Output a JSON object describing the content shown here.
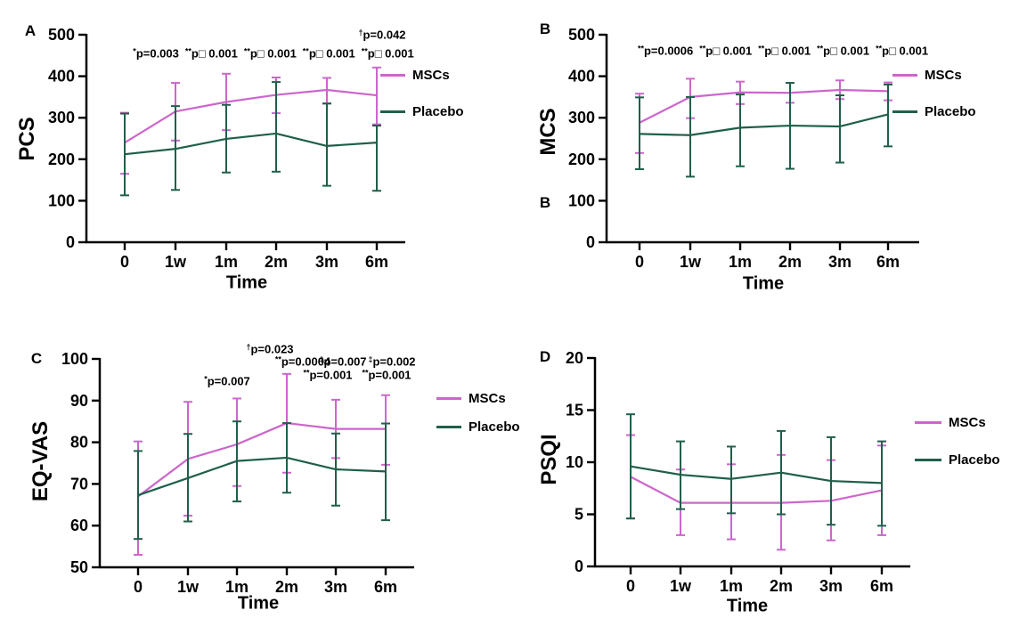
{
  "series_legend": {
    "mscs": "MSCs",
    "placebo": "Placebo"
  },
  "colors": {
    "mscs": "#CC66CC",
    "placebo": "#1F5F4B",
    "axis": "#000000"
  },
  "chart_data": [
    {
      "type": "line",
      "panel_label": "A",
      "ylabel": "PCS",
      "xlabel": "Time",
      "ylim": [
        0,
        500
      ],
      "yticks": [
        0,
        100,
        200,
        300,
        400,
        500
      ],
      "categories": [
        "0",
        "1w",
        "1m",
        "2m",
        "3m",
        "6m"
      ],
      "legend_position": "right",
      "grid": false,
      "series": [
        {
          "name": "MSCs",
          "color": "#CC66CC",
          "values": [
            240,
            315,
            338,
            355,
            367,
            354
          ],
          "err_low": [
            165,
            245,
            270,
            311,
            335,
            284
          ],
          "err_high": [
            312,
            384,
            406,
            397,
            396,
            421
          ]
        },
        {
          "name": "Placebo",
          "color": "#1F5F4B",
          "values": [
            212,
            225,
            249,
            262,
            232,
            240
          ],
          "err_low": [
            113,
            126,
            168,
            170,
            136,
            124
          ],
          "err_high": [
            310,
            328,
            331,
            386,
            334,
            281
          ]
        }
      ],
      "annotations": [
        {
          "x": 429,
          "y": 39,
          "parts": [
            {
              "marker": "†",
              "text": "p=0.042"
            }
          ]
        },
        {
          "x": 307,
          "y": 60,
          "parts": [
            {
              "marker": "*",
              "text": "p=0.003"
            },
            {
              "marker": "**",
              "text": "p□ 0.001"
            },
            {
              "marker": "**",
              "text": "p□ 0.001"
            },
            {
              "marker": "**",
              "text": "p□ 0.001"
            },
            {
              "marker": "**",
              "text": "p□ 0.001"
            }
          ]
        }
      ]
    },
    {
      "type": "line",
      "panel_label": "B",
      "extra_label": "B",
      "ylabel": "MCS",
      "xlabel": "Time",
      "ylim": [
        0,
        500
      ],
      "yticks": [
        0,
        100,
        200,
        300,
        400,
        500
      ],
      "categories": [
        "0",
        "1w",
        "1m",
        "2m",
        "3m",
        "6m"
      ],
      "legend_position": "right",
      "grid": false,
      "series": [
        {
          "name": "MSCs",
          "color": "#CC66CC",
          "values": [
            288,
            350,
            361,
            360,
            367,
            364
          ],
          "err_low": [
            215,
            299,
            333,
            336,
            345,
            342
          ],
          "err_high": [
            358,
            394,
            387,
            384,
            390,
            385
          ]
        },
        {
          "name": "Placebo",
          "color": "#1F5F4B",
          "values": [
            261,
            258,
            276,
            281,
            279,
            308
          ],
          "err_low": [
            176,
            158,
            183,
            177,
            192,
            231
          ],
          "err_high": [
            349,
            350,
            356,
            384,
            354,
            380
          ]
        }
      ],
      "annotations": [
        {
          "x": 298,
          "y": 57,
          "parts": [
            {
              "marker": "**",
              "text": "p=0.0006"
            },
            {
              "marker": "**",
              "text": "p□ 0.001"
            },
            {
              "marker": "**",
              "text": "p□ 0.001"
            },
            {
              "marker": "**",
              "text": "p□ 0.001"
            },
            {
              "marker": "**",
              "text": "p□ 0.001"
            }
          ]
        }
      ]
    },
    {
      "type": "line",
      "panel_label": "C",
      "ylabel": "EQ-VAS",
      "xlabel": "Time",
      "ylim": [
        50,
        100
      ],
      "yticks": [
        50,
        60,
        70,
        80,
        90,
        100
      ],
      "categories": [
        "0",
        "1w",
        "1m",
        "2m",
        "3m",
        "6m"
      ],
      "legend_position": "right",
      "grid": false,
      "series": [
        {
          "name": "MSCs",
          "color": "#CC66CC",
          "values": [
            67,
            76,
            79.5,
            84.6,
            83.2,
            83.2
          ],
          "err_low": [
            53,
            62.4,
            69.5,
            72.7,
            76.2,
            74.6
          ],
          "err_high": [
            80.2,
            89.7,
            90.5,
            96.4,
            90.2,
            91.3
          ]
        },
        {
          "name": "Placebo",
          "color": "#1F5F4B",
          "values": [
            67.3,
            71.4,
            75.5,
            76.3,
            73.5,
            73
          ],
          "err_low": [
            56.8,
            61,
            65.8,
            67.9,
            64.8,
            61.3
          ],
          "err_high": [
            77.9,
            82,
            85,
            84.6,
            82.1,
            84.5
          ]
        }
      ],
      "annotations": [
        {
          "x": 255,
          "y": 67,
          "parts": [
            {
              "marker": "*",
              "text": "p=0.007"
            }
          ]
        },
        {
          "x": 303,
          "y": 31,
          "parts": [
            {
              "marker": "†",
              "text": "p=0.023"
            }
          ]
        },
        {
          "x": 340,
          "y": 45,
          "parts": [
            {
              "marker": "**",
              "text": "p=0.0004"
            }
          ]
        },
        {
          "x": 385,
          "y": 45,
          "parts": [
            {
              "marker": "‡",
              "text": "p=0.007"
            }
          ]
        },
        {
          "x": 440,
          "y": 45,
          "parts": [
            {
              "marker": "‡",
              "text": "p=0.002"
            }
          ]
        },
        {
          "x": 368,
          "y": 60,
          "parts": [
            {
              "marker": "**",
              "text": "p=0.001"
            }
          ]
        },
        {
          "x": 434,
          "y": 60,
          "parts": [
            {
              "marker": "**",
              "text": "p=0.001"
            }
          ]
        }
      ]
    },
    {
      "type": "line",
      "panel_label": "D",
      "ylabel": "PSQI",
      "xlabel": "Time",
      "ylim": [
        0,
        20
      ],
      "yticks": [
        0,
        5,
        10,
        15,
        20
      ],
      "categories": [
        "0",
        "1w",
        "1m",
        "2m",
        "3m",
        "6m"
      ],
      "legend_position": "right",
      "grid": false,
      "series": [
        {
          "name": "MSCs",
          "color": "#CC66CC",
          "values": [
            8.6,
            6.1,
            6.1,
            6.1,
            6.3,
            7.3
          ],
          "err_low": [
            4.6,
            3.0,
            2.6,
            1.6,
            2.5,
            3.0
          ],
          "err_high": [
            12.6,
            9.3,
            9.8,
            10.7,
            10.2,
            11.6
          ]
        },
        {
          "name": "Placebo",
          "color": "#1F5F4B",
          "values": [
            9.6,
            8.8,
            8.4,
            9.0,
            8.2,
            8.0
          ],
          "err_low": [
            4.6,
            5.5,
            5.1,
            5.0,
            4.0,
            3.9
          ],
          "err_high": [
            14.6,
            12.0,
            11.5,
            13.0,
            12.4,
            12.0
          ]
        }
      ],
      "annotations": []
    }
  ]
}
